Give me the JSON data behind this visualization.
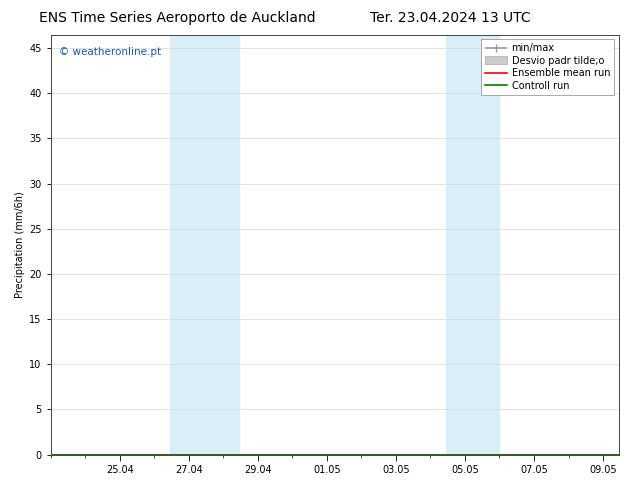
{
  "title_left": "ENS Time Series Aeroporto de Auckland",
  "title_right": "Ter. 23.04.2024 13 UTC",
  "ylabel": "Precipitation (mm/6h)",
  "watermark": "© weatheronline.pt",
  "ylim": [
    0,
    46.5
  ],
  "yticks": [
    0,
    5,
    10,
    15,
    20,
    25,
    30,
    35,
    40,
    45
  ],
  "x_start_label": "2024-04-23 13:00",
  "x_end_label": "2024-05-10 00:00",
  "xlim_days": [
    0,
    16.458
  ],
  "xtick_positions": [
    2,
    4,
    6,
    8,
    10,
    12,
    14,
    16
  ],
  "xtick_labels": [
    "25.04",
    "27.04",
    "29.04",
    "01.05",
    "03.05",
    "05.05",
    "07.05",
    "09.05"
  ],
  "shade_regions": [
    {
      "start_day": 3.458,
      "end_day": 5.458
    },
    {
      "start_day": 11.458,
      "end_day": 13.0
    }
  ],
  "shade_color": "#daeef9",
  "legend_items": [
    {
      "label": "min/max",
      "color": "#999999",
      "lw": 1.2,
      "style": "-"
    },
    {
      "label": "Desvio padr tilde;o",
      "color": "#cccccc",
      "lw": 6,
      "style": "-"
    },
    {
      "label": "Ensemble mean run",
      "color": "#ff0000",
      "lw": 1.2,
      "style": "-"
    },
    {
      "label": "Controll run",
      "color": "#008000",
      "lw": 1.2,
      "style": "-"
    }
  ],
  "bg_color": "#ffffff",
  "title_fontsize": 10,
  "tick_fontsize": 7,
  "ylabel_fontsize": 7,
  "watermark_color": "#1a5aaa",
  "watermark_fontsize": 7.5,
  "legend_fontsize": 7,
  "grid_color": "#d8d8d8"
}
